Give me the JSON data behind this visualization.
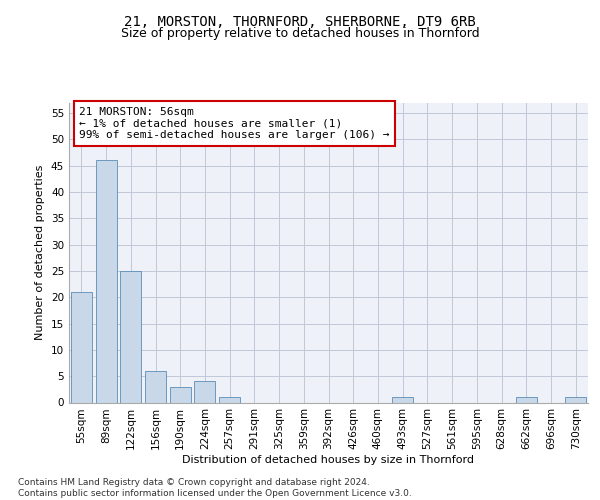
{
  "title": "21, MORSTON, THORNFORD, SHERBORNE, DT9 6RB",
  "subtitle": "Size of property relative to detached houses in Thornford",
  "xlabel": "Distribution of detached houses by size in Thornford",
  "ylabel": "Number of detached properties",
  "categories": [
    "55sqm",
    "89sqm",
    "122sqm",
    "156sqm",
    "190sqm",
    "224sqm",
    "257sqm",
    "291sqm",
    "325sqm",
    "359sqm",
    "392sqm",
    "426sqm",
    "460sqm",
    "493sqm",
    "527sqm",
    "561sqm",
    "595sqm",
    "628sqm",
    "662sqm",
    "696sqm",
    "730sqm"
  ],
  "values": [
    21,
    46,
    25,
    6,
    3,
    4,
    1,
    0,
    0,
    0,
    0,
    0,
    0,
    1,
    0,
    0,
    0,
    0,
    1,
    0,
    1
  ],
  "bar_color": "#c8d8e8",
  "bar_edge_color": "#5b8db8",
  "annotation_text": "21 MORSTON: 56sqm\n← 1% of detached houses are smaller (1)\n99% of semi-detached houses are larger (106) →",
  "annotation_box_color": "#ffffff",
  "annotation_box_edge_color": "#cc0000",
  "ylim": [
    0,
    57
  ],
  "yticks": [
    0,
    5,
    10,
    15,
    20,
    25,
    30,
    35,
    40,
    45,
    50,
    55
  ],
  "grid_color": "#c0c8d8",
  "background_color": "#eef2f8",
  "footer_text": "Contains HM Land Registry data © Crown copyright and database right 2024.\nContains public sector information licensed under the Open Government Licence v3.0.",
  "title_fontsize": 10,
  "subtitle_fontsize": 9,
  "axis_label_fontsize": 8,
  "tick_fontsize": 7.5,
  "annotation_fontsize": 8,
  "footer_fontsize": 6.5
}
